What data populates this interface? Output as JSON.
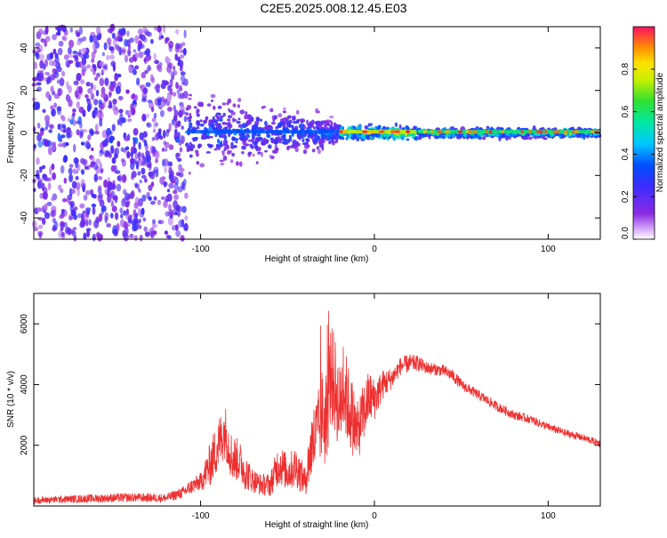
{
  "title": "C2E5.2025.008.12.45.E03",
  "chart_data": [
    {
      "type": "heatmap",
      "xlabel": "Height of straight line (km)",
      "ylabel": "Frequency (Hz)",
      "xlim": [
        -196,
        130
      ],
      "ylim": [
        -50,
        50
      ],
      "x_ticks": [
        -100,
        0,
        100
      ],
      "x_tick_labels": [
        "-100",
        "0",
        "100"
      ],
      "y_ticks": [
        -40,
        -20,
        0,
        20,
        40
      ],
      "y_tick_labels": [
        "-40",
        "-20",
        "0",
        "20",
        "40"
      ],
      "colorbar": {
        "label": "Normalized spectral amplitude",
        "range": [
          0.0,
          1.0
        ],
        "ticks": [
          0.0,
          0.2,
          0.4,
          0.6,
          0.8
        ],
        "tick_labels": [
          "0.0",
          "0.2",
          "0.4",
          "0.6",
          "0.8"
        ],
        "colormap": "rainbow (white-violet to red)"
      },
      "bands": [
        {
          "x_from": -196,
          "x_to": -108,
          "freq_spread_hz": 50,
          "amplitude": 0.15,
          "note": "broadband noise"
        },
        {
          "x_from": -108,
          "x_to": -20,
          "freq_spread_hz": 6,
          "amplitude": 0.35
        },
        {
          "x_from": -20,
          "x_to": 25,
          "freq_spread_hz": 3,
          "amplitude": 0.75
        },
        {
          "x_from": 25,
          "x_to": 130,
          "freq_spread_hz": 2,
          "amplitude": 0.6
        }
      ],
      "grid": false
    },
    {
      "type": "line",
      "xlabel": "Height of straight line (km)",
      "ylabel": "SNR (10 * v/v)",
      "xlim": [
        -196,
        130
      ],
      "ylim": [
        0,
        7000
      ],
      "x_ticks": [
        -100,
        0,
        100
      ],
      "x_tick_labels": [
        "-100",
        "0",
        "100"
      ],
      "y_ticks": [
        2000,
        4000,
        6000
      ],
      "y_tick_labels": [
        "2000",
        "4000",
        "6000"
      ],
      "series": [
        {
          "color": "#ee3030",
          "x": [
            -196,
            -180,
            -160,
            -140,
            -120,
            -110,
            -105,
            -100,
            -95,
            -90,
            -86,
            -82,
            -78,
            -74,
            -70,
            -65,
            -60,
            -55,
            -50,
            -45,
            -40,
            -36,
            -32,
            -30,
            -28,
            -25,
            -22,
            -20,
            -18,
            -15,
            -12,
            -10,
            -6,
            -3,
            0,
            5,
            10,
            15,
            20,
            25,
            30,
            35,
            40,
            45,
            50,
            60,
            70,
            80,
            90,
            100,
            110,
            120,
            130
          ],
          "y": [
            180,
            220,
            250,
            280,
            260,
            450,
            650,
            800,
            1300,
            2000,
            2500,
            1600,
            1500,
            1100,
            850,
            700,
            700,
            1400,
            1100,
            1300,
            800,
            2000,
            2500,
            3100,
            2600,
            4400,
            3800,
            3200,
            4000,
            3300,
            2800,
            2400,
            3100,
            3600,
            3500,
            4000,
            4200,
            4600,
            4700,
            4700,
            4550,
            4500,
            4450,
            4300,
            4000,
            3650,
            3300,
            3000,
            2850,
            2600,
            2400,
            2250,
            2050
          ],
          "noise_amplitude": [
            110,
            120,
            140,
            150,
            140,
            200,
            250,
            300,
            700,
            900,
            900,
            800,
            700,
            600,
            400,
            350,
            400,
            700,
            600,
            700,
            500,
            1200,
            1400,
            1500,
            1500,
            1700,
            1600,
            1500,
            1500,
            1400,
            1200,
            1000,
            1000,
            900,
            700,
            500,
            350,
            300,
            300,
            250,
            220,
            200,
            200,
            200,
            180,
            170,
            160,
            150,
            140,
            130,
            130,
            120,
            120
          ]
        }
      ],
      "grid": false
    }
  ]
}
